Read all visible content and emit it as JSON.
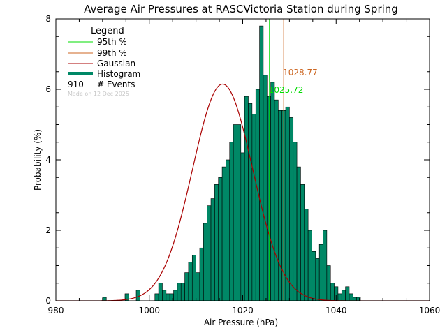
{
  "chart_data": {
    "type": "bar",
    "title": "Average Air Pressures at RASCVictoria Station during Spring",
    "xlabel": "Air Pressure (hPa)",
    "ylabel": "Probability (%)",
    "xlim": [
      980,
      1060
    ],
    "ylim": [
      0,
      8
    ],
    "xticks": [
      "980",
      "1000",
      "1020",
      "1040",
      "1060"
    ],
    "yticks": [
      "0",
      "2",
      "4",
      "6",
      "8"
    ],
    "bin_width": 0.8,
    "bin_start": 990.0,
    "histogram": [
      0.1,
      0.0,
      0.0,
      0.0,
      0.0,
      0.0,
      0.2,
      0.0,
      0.0,
      0.3,
      0.0,
      0.0,
      0.0,
      0.0,
      0.2,
      0.5,
      0.3,
      0.2,
      0.2,
      0.3,
      0.5,
      0.5,
      0.8,
      1.1,
      1.3,
      0.8,
      1.5,
      2.2,
      2.7,
      2.9,
      3.3,
      3.5,
      3.8,
      4.0,
      4.5,
      5.0,
      5.0,
      4.2,
      5.8,
      5.6,
      5.3,
      6.0,
      7.8,
      6.4,
      5.8,
      6.2,
      5.7,
      5.4,
      5.4,
      5.5,
      5.2,
      4.5,
      3.8,
      3.3,
      2.6,
      2.0,
      1.4,
      1.2,
      1.6,
      2.0,
      1.0,
      0.5,
      0.4,
      0.2,
      0.3,
      0.4,
      0.2,
      0.1,
      0.1
    ],
    "gaussian": {
      "mean": 1015.7,
      "std": 6.45,
      "peak": 6.15
    },
    "percentile_95": 1025.72,
    "percentile_99": 1028.77,
    "n_events": 910,
    "colors": {
      "histogram": "#008866",
      "gaussian": "#aa0000",
      "p95": "#00dd00",
      "p99": "#cc6622"
    }
  },
  "labels": {
    "p95_value": "1025.72",
    "p99_value": "1028.77"
  },
  "legend": {
    "title": "Legend",
    "p95": "95th %",
    "p99": "99th %",
    "gaussian": "Gaussian",
    "histogram": "Histogram",
    "events_count": "910",
    "events_label": "# Events",
    "made_on": "Made on 12 Dec 2025"
  }
}
